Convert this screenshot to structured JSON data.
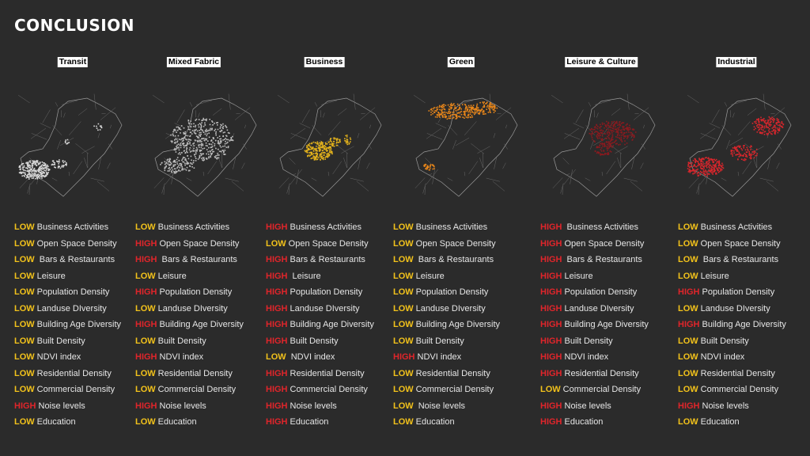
{
  "page": {
    "title": "CONCLUSION"
  },
  "colors": {
    "background": "#2b2b2b",
    "low": "#f2c21b",
    "high": "#e0252b",
    "map_outline": "#9a9a9a"
  },
  "columns": [
    {
      "label": "Transit",
      "map_color": "#d8d8d8",
      "rows": [
        {
          "level": "LOW",
          "text": "Business Activities"
        },
        {
          "level": "LOW",
          "text": "Open Space Density"
        },
        {
          "level": "LOW",
          "text": " Bars & Restaurants"
        },
        {
          "level": "LOW",
          "text": "Leisure"
        },
        {
          "level": "LOW",
          "text": "Population Density"
        },
        {
          "level": "LOW",
          "text": "Landuse DIversity"
        },
        {
          "level": "LOW",
          "text": "Building Age Diversity"
        },
        {
          "level": "LOW",
          "text": "Built Density"
        },
        {
          "level": "LOW",
          "text": "NDVI index"
        },
        {
          "level": "LOW",
          "text": "Residential  Density"
        },
        {
          "level": "LOW",
          "text": "Commercial Density"
        },
        {
          "level": "HIGH",
          "text": "Noise levels"
        },
        {
          "level": "LOW",
          "text": "Education"
        }
      ]
    },
    {
      "label": "Mixed Fabric",
      "map_color": "#bdbdbd",
      "rows": [
        {
          "level": "LOW",
          "text": "Business Activities"
        },
        {
          "level": "HIGH",
          "text": "Open Space Density"
        },
        {
          "level": "HIGH",
          "text": " Bars & Restaurants"
        },
        {
          "level": "LOW",
          "text": "Leisure"
        },
        {
          "level": "HIGH",
          "text": "Population Density"
        },
        {
          "level": "LOW",
          "text": "Landuse DIversity"
        },
        {
          "level": "HIGH",
          "text": "Building Age Diversity"
        },
        {
          "level": "LOW",
          "text": "Built Density"
        },
        {
          "level": "HIGH",
          "text": "NDVI index"
        },
        {
          "level": "LOW",
          "text": "Residential  Density"
        },
        {
          "level": "LOW",
          "text": "Commercial Density"
        },
        {
          "level": "HIGH",
          "text": "Noise levels"
        },
        {
          "level": "LOW",
          "text": "Education"
        }
      ]
    },
    {
      "label": "Business",
      "map_color": "#e3b21c",
      "rows": [
        {
          "level": "HIGH",
          "text": "Business Activities"
        },
        {
          "level": "LOW",
          "text": "Open Space Density"
        },
        {
          "level": "HIGH",
          "text": "Bars & Restaurants"
        },
        {
          "level": "HIGH",
          "text": " Leisure"
        },
        {
          "level": "HIGH",
          "text": "Population Density"
        },
        {
          "level": "HIGH",
          "text": "Landuse DIversity"
        },
        {
          "level": "HIGH",
          "text": "Building Age Diversity"
        },
        {
          "level": "HIGH",
          "text": "Built Density"
        },
        {
          "level": "LOW",
          "text": " NDVI index"
        },
        {
          "level": "HIGH",
          "text": "Residential  Density"
        },
        {
          "level": "HIGH",
          "text": "Commercial Density"
        },
        {
          "level": "HIGH",
          "text": "Noise levels"
        },
        {
          "level": "HIGH",
          "text": "Education"
        }
      ]
    },
    {
      "label": "Green",
      "map_color": "#e8861a",
      "rows": [
        {
          "level": "LOW",
          "text": "Business Activities"
        },
        {
          "level": "LOW",
          "text": "Open Space Density"
        },
        {
          "level": "LOW",
          "text": " Bars & Restaurants"
        },
        {
          "level": "LOW",
          "text": "Leisure"
        },
        {
          "level": "LOW",
          "text": "Population Density"
        },
        {
          "level": "LOW",
          "text": "Landuse DIversity"
        },
        {
          "level": "LOW",
          "text": "Building Age Diversity"
        },
        {
          "level": "LOW",
          "text": "Built Density"
        },
        {
          "level": "HIGH",
          "text": "NDVI index"
        },
        {
          "level": "LOW",
          "text": "Residential  Density"
        },
        {
          "level": "LOW",
          "text": "Commercial Density"
        },
        {
          "level": "LOW",
          "text": " Noise levels"
        },
        {
          "level": "LOW",
          "text": "Education"
        }
      ]
    },
    {
      "label": "Leisure & Culture",
      "map_color": "#8a1a1f",
      "rows": [
        {
          "level": "HIGH",
          "text": " Business Activities"
        },
        {
          "level": "HIGH",
          "text": "Open Space Density"
        },
        {
          "level": "HIGH",
          "text": " Bars & Restaurants"
        },
        {
          "level": "HIGH",
          "text": "Leisure"
        },
        {
          "level": "HIGH",
          "text": "Population Density"
        },
        {
          "level": "HIGH",
          "text": "Landuse DIversity"
        },
        {
          "level": "HIGH",
          "text": "Building Age Diversity"
        },
        {
          "level": "HIGH",
          "text": "Built Density"
        },
        {
          "level": "HIGH",
          "text": "NDVI index"
        },
        {
          "level": "HIGH",
          "text": "Residential  Density"
        },
        {
          "level": "LOW",
          "text": "Commercial Density"
        },
        {
          "level": "HIGH",
          "text": "Noise levels"
        },
        {
          "level": "HIGH",
          "text": "Education"
        }
      ]
    },
    {
      "label": "Industrial",
      "map_color": "#d8262c",
      "rows": [
        {
          "level": "LOW",
          "text": "Business Activities"
        },
        {
          "level": "LOW",
          "text": "Open Space Density"
        },
        {
          "level": "LOW",
          "text": " Bars & Restaurants"
        },
        {
          "level": "LOW",
          "text": "Leisure"
        },
        {
          "level": "HIGH",
          "text": "Population Density"
        },
        {
          "level": "LOW",
          "text": "Landuse DIversity"
        },
        {
          "level": "HIGH",
          "text": "Building Age Diversity"
        },
        {
          "level": "LOW",
          "text": "Built Density"
        },
        {
          "level": "LOW",
          "text": "NDVI index"
        },
        {
          "level": "LOW",
          "text": "Residential  Density"
        },
        {
          "level": "LOW",
          "text": "Commercial Density"
        },
        {
          "level": "HIGH",
          "text": "Noise levels"
        },
        {
          "level": "LOW",
          "text": "Education"
        }
      ]
    }
  ]
}
